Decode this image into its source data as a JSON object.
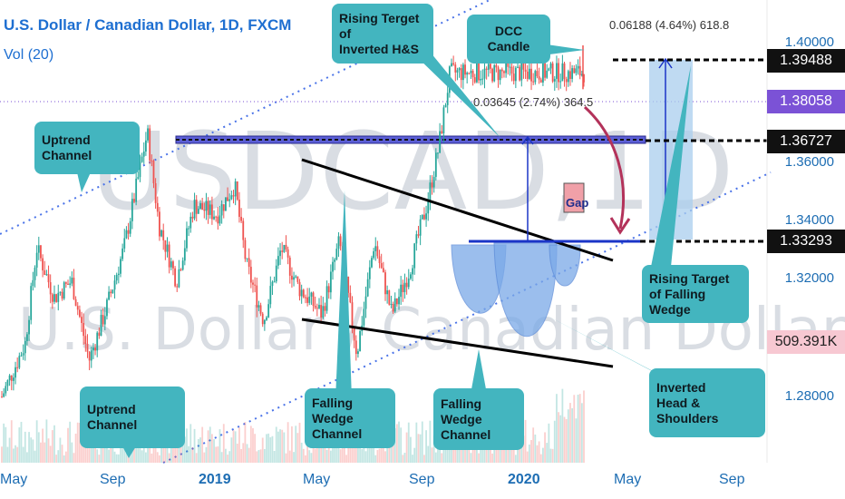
{
  "header": {
    "title": "U.S. Dollar / Canadian Dollar, 1D, FXCM",
    "volume_label": "Vol (20)",
    "watermark_symbol": "USDCAD,1D",
    "watermark_name": "U.S. Dollar / Canadian Dollar"
  },
  "price_tags": [
    {
      "label": "1.39488",
      "style": "dark"
    },
    {
      "label": "1.38058",
      "style": "purple"
    },
    {
      "label": "1.36727",
      "style": "dark"
    },
    {
      "label": "1.33293",
      "style": "dark"
    },
    {
      "label": "509.391K",
      "style": "pink"
    }
  ],
  "measurements": {
    "upper": "0.06188 (4.64%) 618.8",
    "lower": "0.03645 (2.74%) 364.5"
  },
  "annotations": {
    "dcc_candle": "DCC Candle",
    "rising_target_hs": [
      "Rising Terget of",
      "Inverted H&S"
    ],
    "uptrend_channel_top": "Uptrend Channel",
    "uptrend_channel_bottom": "Uptrend Channel",
    "falling_wedge_1": [
      "Falling Wedge",
      "Channel"
    ],
    "falling_wedge_2": [
      "Falling Wedge",
      "Channel"
    ],
    "rising_target_wedge": [
      "Rising Target",
      "of Falling Wedge"
    ],
    "inverted_hs": [
      "Inverted",
      "Head & Shoulders"
    ],
    "gap": "Gap"
  },
  "colors": {
    "bull": "#26a69a",
    "bear": "#ef5350",
    "callout": "#43b5bf",
    "channel": "#2f5de0",
    "accent_purple": "#7b52d6",
    "tag_dark": "#111111",
    "tag_pink": "#f7c8d2"
  },
  "chart_data": {
    "type": "candlestick",
    "symbol": "USDCAD",
    "timeframe": "1D",
    "x_tick_labels": [
      "May",
      "Sep",
      "2019",
      "May",
      "Sep",
      "2020",
      "May",
      "Sep"
    ],
    "y_tick_labels": [
      "1.40000",
      "1.36000",
      "1.34000",
      "1.32000",
      "1.28000"
    ],
    "ylim": [
      1.265,
      1.405
    ],
    "close_path": [
      {
        "x": 0.0,
        "close": 1.285
      },
      {
        "x": 0.04,
        "close": 1.301
      },
      {
        "x": 0.06,
        "close": 1.33
      },
      {
        "x": 0.09,
        "close": 1.315
      },
      {
        "x": 0.12,
        "close": 1.32
      },
      {
        "x": 0.15,
        "close": 1.296
      },
      {
        "x": 0.18,
        "close": 1.312
      },
      {
        "x": 0.21,
        "close": 1.33
      },
      {
        "x": 0.25,
        "close": 1.365
      },
      {
        "x": 0.27,
        "close": 1.337
      },
      {
        "x": 0.3,
        "close": 1.32
      },
      {
        "x": 0.33,
        "close": 1.343
      },
      {
        "x": 0.37,
        "close": 1.34
      },
      {
        "x": 0.4,
        "close": 1.349
      },
      {
        "x": 0.42,
        "close": 1.325
      },
      {
        "x": 0.45,
        "close": 1.308
      },
      {
        "x": 0.48,
        "close": 1.33
      },
      {
        "x": 0.51,
        "close": 1.318
      },
      {
        "x": 0.55,
        "close": 1.31
      },
      {
        "x": 0.58,
        "close": 1.332
      },
      {
        "x": 0.61,
        "close": 1.298
      },
      {
        "x": 0.64,
        "close": 1.332
      },
      {
        "x": 0.67,
        "close": 1.31
      },
      {
        "x": 0.7,
        "close": 1.323
      },
      {
        "x": 0.73,
        "close": 1.343
      },
      {
        "x": 0.75,
        "close": 1.36
      },
      {
        "x": 0.77,
        "close": 1.383
      }
    ]
  }
}
